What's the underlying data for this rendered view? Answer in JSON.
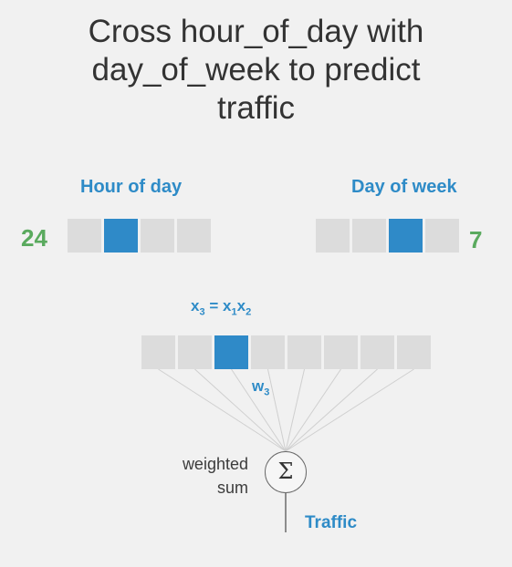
{
  "title": "Cross hour_of_day with\nday_of_week to predict\ntraffic",
  "hour": {
    "label": "Hour of day",
    "count": "24",
    "cells": [
      false,
      true,
      false,
      false
    ]
  },
  "day": {
    "label": "Day of week",
    "count": "7",
    "cells": [
      false,
      false,
      true,
      false
    ]
  },
  "cross": {
    "formula": {
      "lhs_var": "x",
      "lhs_sub": "3",
      "eq": "=",
      "a_var": "x",
      "a_sub": "1",
      "b_var": "x",
      "b_sub": "2"
    },
    "cells": [
      false,
      false,
      true,
      false,
      false,
      false,
      false,
      false
    ]
  },
  "weight": {
    "var": "w",
    "sub": "3"
  },
  "sum": {
    "label": "weighted\nsum",
    "symbol": "Σ"
  },
  "output": {
    "label": "Traffic"
  },
  "colors": {
    "active_cell": "#2f8ac8",
    "inactive_cell": "#dcdcdc",
    "label_blue": "#2e8bc7",
    "count_green": "#5aaa5e",
    "connector_line": "#cfcfcf"
  }
}
